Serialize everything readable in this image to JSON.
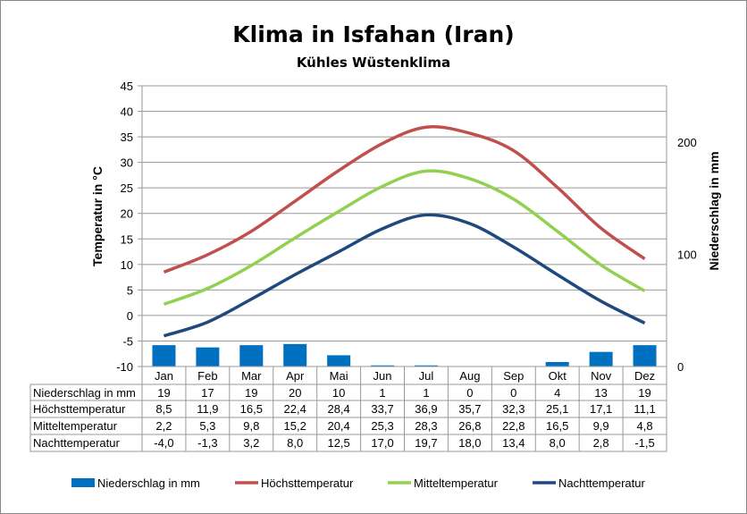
{
  "chart_data": {
    "type": "bar+line",
    "title": "Klima in Isfahan (Iran)",
    "subtitle": "Kühles Wüstenklima",
    "ylabel": "Temperatur in °C",
    "y2label": "Niederschlag in mm",
    "ylim": [
      -10,
      45
    ],
    "yticks": [
      "45",
      "40",
      "35",
      "30",
      "25",
      "20",
      "15",
      "10",
      "5",
      "0",
      "-5",
      "-10"
    ],
    "y2lim": [
      0,
      250
    ],
    "y2ticks": [
      "200",
      "100",
      "0"
    ],
    "grid": true,
    "legend_position": "bottom",
    "categories": [
      "Jan",
      "Feb",
      "Mar",
      "Apr",
      "Mai",
      "Jun",
      "Jul",
      "Aug",
      "Sep",
      "Okt",
      "Nov",
      "Dez"
    ],
    "series": [
      {
        "name": "Niederschlag in mm",
        "type": "bar",
        "axis": "right",
        "color": "#0070c0",
        "values": [
          19,
          17,
          19,
          20,
          10,
          1,
          1,
          0,
          0,
          4,
          13,
          19
        ],
        "labels": [
          "19",
          "17",
          "19",
          "20",
          "10",
          "1",
          "1",
          "0",
          "0",
          "4",
          "13",
          "19"
        ]
      },
      {
        "name": "Höchsttemperatur",
        "type": "line",
        "axis": "left",
        "color": "#c0504d",
        "values": [
          8.5,
          11.9,
          16.5,
          22.4,
          28.4,
          33.7,
          36.9,
          35.7,
          32.3,
          25.1,
          17.1,
          11.1
        ],
        "labels": [
          "8,5",
          "11,9",
          "16,5",
          "22,4",
          "28,4",
          "33,7",
          "36,9",
          "35,7",
          "32,3",
          "25,1",
          "17,1",
          "11,1"
        ]
      },
      {
        "name": "Mitteltemperatur",
        "type": "line",
        "axis": "left",
        "color": "#92d050",
        "values": [
          2.2,
          5.3,
          9.8,
          15.2,
          20.4,
          25.3,
          28.3,
          26.8,
          22.8,
          16.5,
          9.9,
          4.8
        ],
        "labels": [
          "2,2",
          "5,3",
          "9,8",
          "15,2",
          "20,4",
          "25,3",
          "28,3",
          "26,8",
          "22,8",
          "16,5",
          "9,9",
          "4,8"
        ]
      },
      {
        "name": "Nachttemperatur",
        "type": "line",
        "axis": "left",
        "color": "#1f497d",
        "values": [
          -4.0,
          -1.3,
          3.2,
          8.0,
          12.5,
          17.0,
          19.7,
          18.0,
          13.4,
          8.0,
          2.8,
          -1.5
        ],
        "labels": [
          "-4,0",
          "-1,3",
          "3,2",
          "8,0",
          "12,5",
          "17,0",
          "19,7",
          "18,0",
          "13,4",
          "8,0",
          "2,8",
          "-1,5"
        ]
      }
    ]
  }
}
